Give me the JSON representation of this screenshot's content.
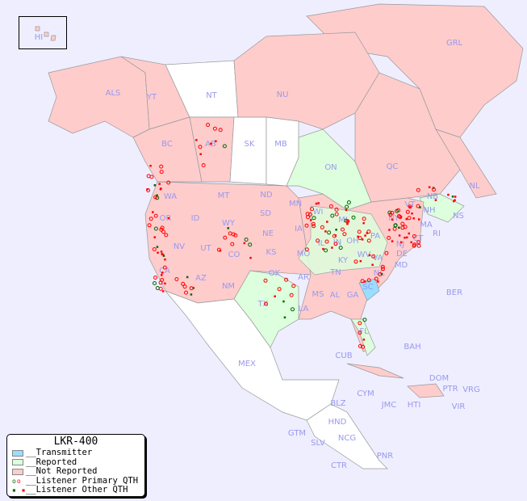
{
  "legend": {
    "title": "LKR-400",
    "items": [
      {
        "label": "__Transmitter",
        "color": "#99ddff"
      },
      {
        "label": "__Reported",
        "color": "#ddffdd"
      },
      {
        "label": "__Not Reported",
        "color": "#ffcccc"
      },
      {
        "label": "__Listener Primary QTH",
        "colors": [
          "#006600",
          "#ff0000"
        ],
        "symbol": "circle"
      },
      {
        "label": "__Listener Other QTH",
        "colors": [
          "#006600",
          "#ff0000"
        ],
        "symbol": "square"
      }
    ]
  },
  "colors": {
    "ocean": "#eeeeff",
    "label": "#9999ee",
    "not_reported": "#ffcccc",
    "reported": "#ddffdd",
    "transmitter": "#99ddff",
    "no_data": "#ffffff"
  },
  "regions": {
    "HI": "HI",
    "ALS": "ALS",
    "YT": "YT",
    "NT": "NT",
    "NU": "NU",
    "GRL": "GRL",
    "BC": "BC",
    "AB": "AB",
    "SK": "SK",
    "MB": "MB",
    "ON": "ON",
    "QC": "QC",
    "NL": "NL",
    "NS": "NS",
    "NB": "NB",
    "WA": "WA",
    "MT": "MT",
    "ND": "ND",
    "MN": "MN",
    "ID": "ID",
    "SD": "SD",
    "WI": "WI",
    "WY": "WY",
    "NE": "NE",
    "IA": "IA",
    "MI": "MI",
    "NY": "NY",
    "VT": "VT",
    "NH": "NH",
    "MA": "MA",
    "OR": "OR",
    "NV": "NV",
    "UT": "UT",
    "CO": "CO",
    "KS": "KS",
    "MO": "MO",
    "IL": "IL",
    "IN": "IN",
    "OH": "OH",
    "PA": "PA",
    "NJ": "NJ",
    "CT": "CT",
    "RI": "RI",
    "DE": "DE",
    "MD": "MD",
    "WV": "WV",
    "VA": "VA",
    "KY": "KY",
    "TN": "TN",
    "NC": "NC",
    "SC": "SC",
    "GA": "GA",
    "AL": "AL",
    "MS": "MS",
    "LA": "LA",
    "AR": "AR",
    "OK": "OK",
    "TX": "TX",
    "NM": "NM",
    "AZ": "AZ",
    "CA": "CA",
    "FL": "FL",
    "CUB": "CUB",
    "BAH": "BAH",
    "BER": "BER",
    "MEX": "MEX",
    "DOM": "DOM",
    "PTR": "PTR",
    "VRG": "VRG",
    "CYM": "CYM",
    "JMC": "JMC",
    "HTI": "HTI",
    "VIR": "VIR",
    "BLZ": "BLZ",
    "HND": "HND",
    "GTM": "GTM",
    "SLV": "SLV",
    "NCG": "NCG",
    "CTR": "CTR",
    "PNR": "PNR"
  }
}
